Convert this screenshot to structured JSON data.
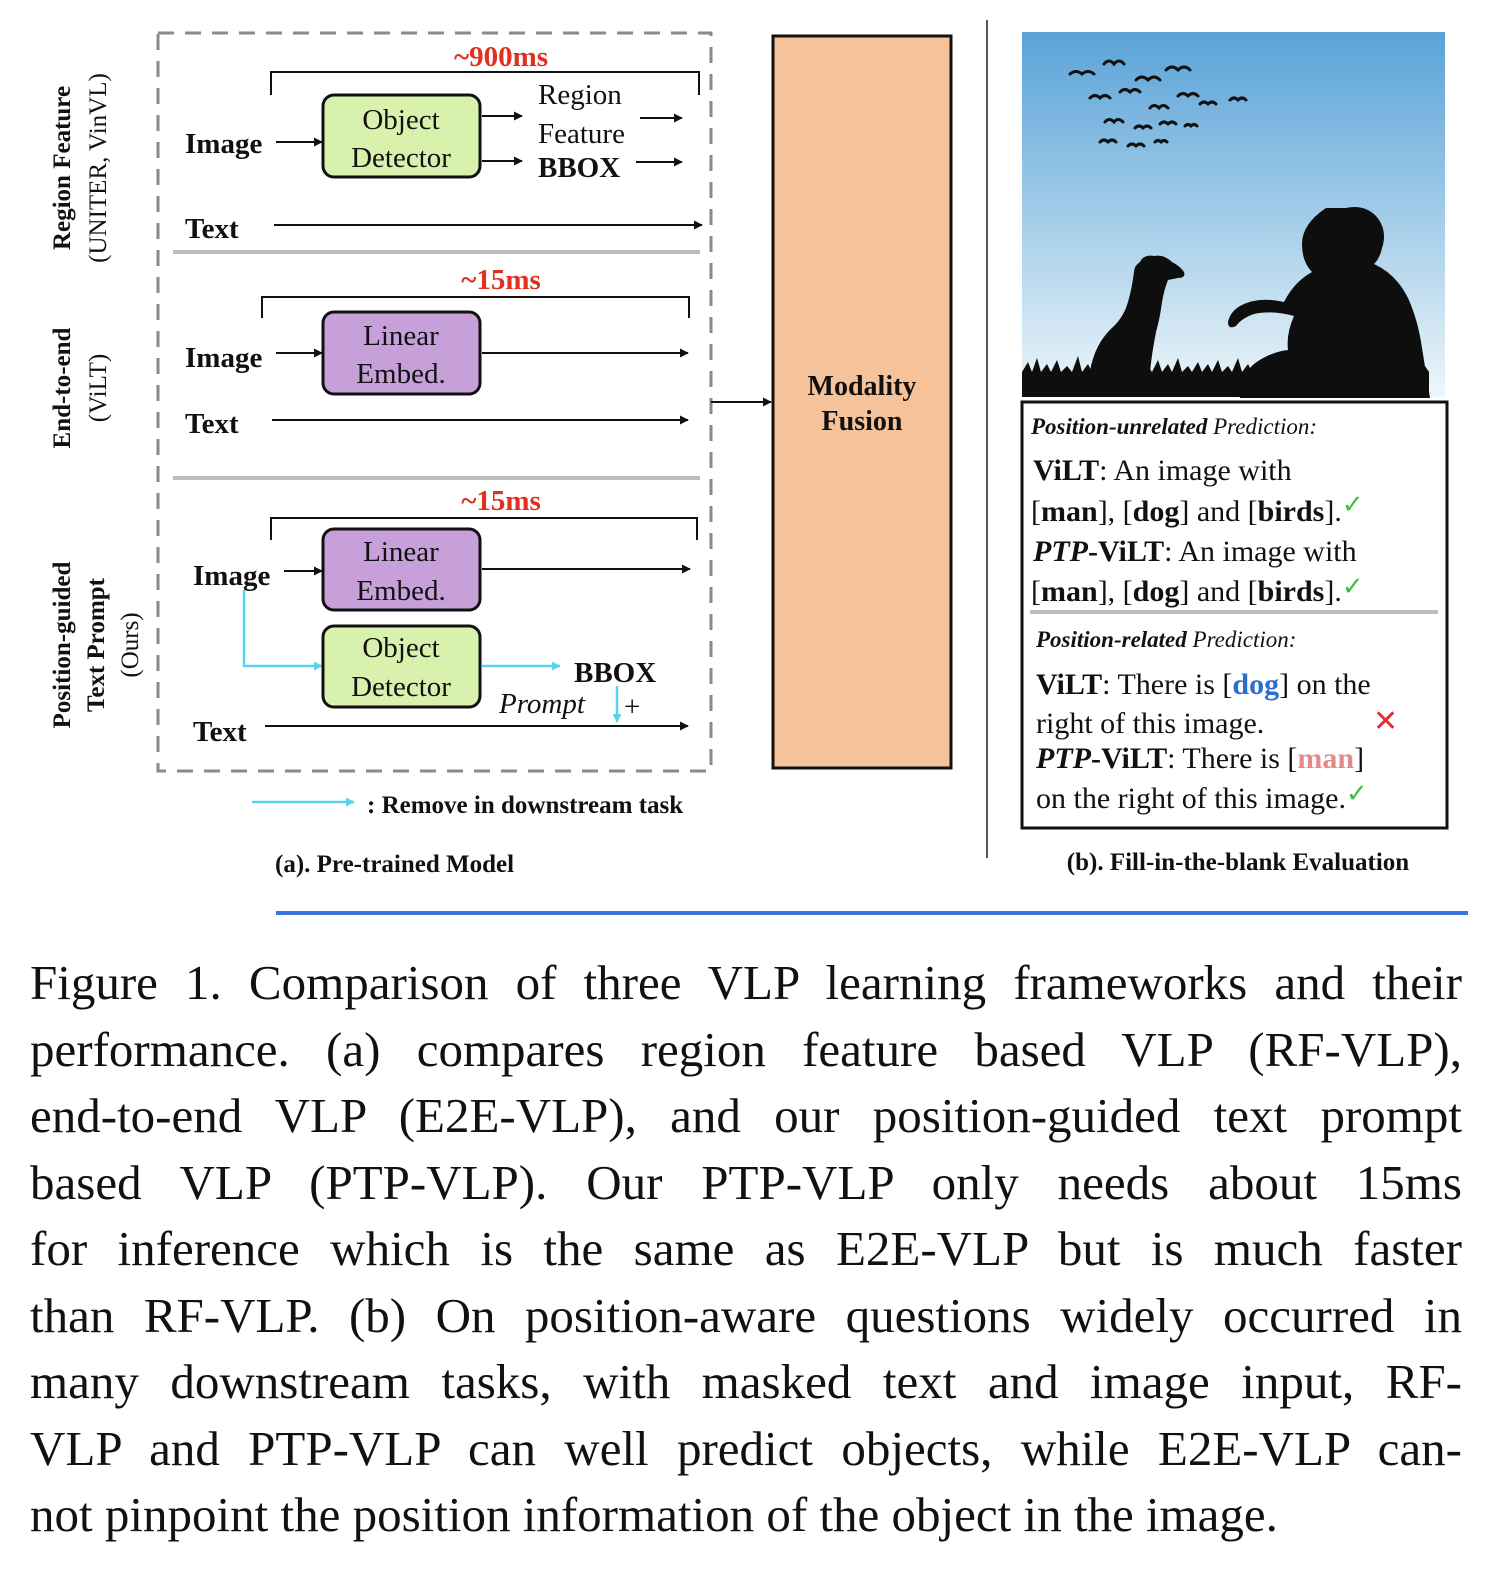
{
  "colors": {
    "timing_red": "#e0301e",
    "green_box": "#d8f2ae",
    "purple_box": "#c7a0d9",
    "fusion_box": "#f5c29a",
    "cyan_arrow": "#5ad2ec",
    "divider_blue": "#3a73e0",
    "check_green": "#3fbf3f",
    "cross_red": "#e03030",
    "dog_blue": "#2a6fd0",
    "man_pink": "#e58a8a",
    "sky_top": "#5aa3d8",
    "sky_bottom": "#e9f3f8"
  },
  "panel_a": {
    "caption": "(a). Pre-trained Model",
    "legend": ": Remove in downstream task",
    "fusion_label_1": "Modality",
    "fusion_label_2": "Fusion",
    "rows": [
      {
        "title_1": "Region Feature",
        "title_2": "(UNITER, VinVL)",
        "timing": "~900ms",
        "image_label": "Image",
        "text_label": "Text",
        "box_1": "Object",
        "box_2": "Detector",
        "out_1": "Region",
        "out_2": "Feature",
        "out_3": "BBOX"
      },
      {
        "title_1": "End-to-end",
        "title_2": "(ViLT)",
        "timing": "~15ms",
        "image_label": "Image",
        "text_label": "Text",
        "box_1": "Linear",
        "box_2": "Embed."
      },
      {
        "title_1": "Position-guided",
        "title_2": "Text Prompt",
        "title_3": "(Ours)",
        "timing": "~15ms",
        "image_label": "Image",
        "text_label": "Text",
        "box_1": "Linear",
        "box_2": "Embed.",
        "box2_1": "Object",
        "box2_2": "Detector",
        "bbox": "BBOX",
        "prompt": "Prompt",
        "plus": "+"
      }
    ]
  },
  "panel_b": {
    "caption": "(b). Fill-in-the-blank  Evaluation",
    "check": "✓",
    "cross": "✕",
    "sec1_head_em": "Position-unrelated",
    "sec1_head_rest": " Prediction:",
    "p1_model": "ViLT",
    "p1_text": ": An image with",
    "p2_model_it": "PTP",
    "p2_model_rest": "-ViLT",
    "p2_text": ": An image with",
    "line_a_1": "[",
    "line_a_man": "man",
    "line_a_2": "], [",
    "line_a_dog": "dog",
    "line_a_3": "] and [",
    "line_a_birds": "birds",
    "line_a_4": "].",
    "sec2_head_em": "Position-related",
    "sec2_head_rest": " Prediction:",
    "q1_model": "ViLT",
    "q1_pre": ": There is [",
    "q1_obj": "dog",
    "q1_post": "] on the",
    "q1_line2": "right of this image.",
    "q2_model_it": "PTP",
    "q2_model_rest": "-ViLT",
    "q2_pre": ": There is [",
    "q2_obj": "man",
    "q2_post": "]",
    "q2_line2": "on the right of this image."
  },
  "caption_lines": [
    "Figure 1. Comparison of three VLP learning frameworks and their",
    "performance.  (a) compares region feature based VLP (RF-VLP),",
    "end-to-end VLP (E2E-VLP), and our position-guided text prompt",
    "based VLP (PTP-VLP). Our PTP-VLP only needs about 15ms",
    "for inference which is the same as E2E-VLP but is much faster",
    "than RF-VLP. (b) On position-aware questions widely occurred in",
    "many downstream tasks, with masked text and image input, RF-",
    "VLP and PTP-VLP can well predict objects, while E2E-VLP can-",
    "not pinpoint the position information of the object in the image."
  ]
}
